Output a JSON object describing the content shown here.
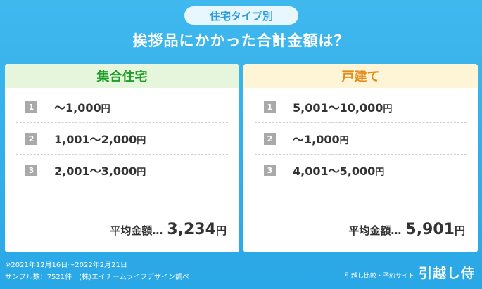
{
  "badge": "住宅タイプ別",
  "headline": "挨拶品にかかった合計金額は？",
  "chart_data": [
    {
      "type": "table",
      "title": "集合住宅",
      "rows": [
        {
          "rank": "1",
          "range": "〜1,000",
          "unit": "円"
        },
        {
          "rank": "2",
          "range": "1,001〜2,000",
          "unit": "円"
        },
        {
          "rank": "3",
          "range": "2,001〜3,000",
          "unit": "円"
        }
      ],
      "average_label": "平均金額…",
      "average_value": "3,234",
      "average_unit": "円",
      "color": "#1f9e29"
    },
    {
      "type": "table",
      "title": "戸建て",
      "rows": [
        {
          "rank": "1",
          "range": "5,001〜10,000",
          "unit": "円"
        },
        {
          "rank": "2",
          "range": "〜1,000",
          "unit": "円"
        },
        {
          "rank": "3",
          "range": "4,001〜5,000",
          "unit": "円"
        }
      ],
      "average_label": "平均金額…",
      "average_value": "5,901",
      "average_unit": "円",
      "color": "#e48a1a"
    }
  ],
  "footer": {
    "note_line1": "※2021年12月16日〜2022年2月21日",
    "note_line2": "サンプル数：7521件　(株)エイチームライフデザイン調べ",
    "brand_tag": "引越し比較・予約サイト",
    "brand_logo": "引越し侍"
  }
}
